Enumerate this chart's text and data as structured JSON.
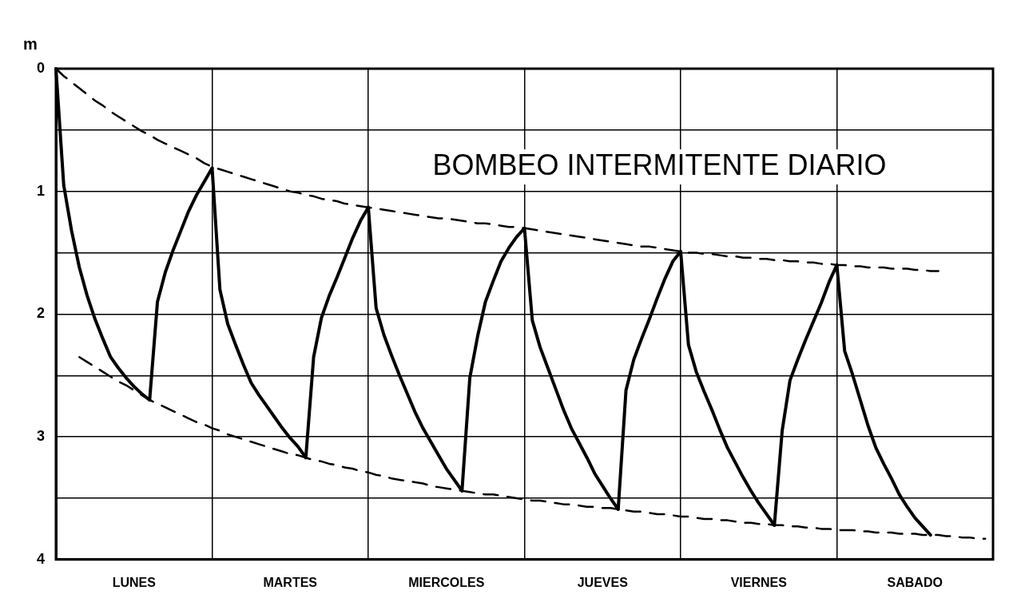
{
  "chart_data": {
    "type": "line",
    "title": "BOMBEO INTERMITENTE DIARIO",
    "ylabel": "m",
    "categories": [
      null,
      null,
      null,
      null,
      null,
      null,
      null,
      null,
      null,
      null,
      "LUNES",
      null,
      null,
      null,
      null,
      null,
      null,
      null,
      null,
      null,
      null,
      null,
      null,
      null,
      null,
      null,
      null,
      null,
      null,
      null,
      "MARTES",
      null,
      null,
      null,
      null,
      null,
      null,
      null,
      null,
      null,
      null,
      null,
      null,
      null,
      null,
      null,
      null,
      null,
      null,
      null,
      "MIERCOLES",
      null,
      null,
      null,
      null,
      null,
      null,
      null,
      null,
      null,
      null,
      null,
      null,
      null,
      null,
      null,
      null,
      null,
      null,
      null,
      "JUEVES",
      null,
      null,
      null,
      null,
      null,
      null,
      null,
      null,
      null,
      null,
      null,
      null,
      null,
      null,
      null,
      null,
      null,
      null,
      null,
      "VIERNES",
      null,
      null,
      null,
      null,
      null,
      null,
      null,
      null,
      null,
      null,
      null,
      null,
      null,
      null,
      null,
      null,
      null,
      null,
      null,
      "SABADO",
      null,
      null,
      null,
      null,
      null,
      null,
      null,
      null,
      null,
      null
    ],
    "ylim": [
      4,
      0
    ],
    "yticks": [
      0,
      {
        "value": 0.5,
        "label": null
      },
      1,
      {
        "value": 1.5,
        "label": null
      },
      2,
      {
        "value": 2.5,
        "label": null
      },
      3,
      {
        "value": 3.5,
        "label": null
      },
      4
    ],
    "grid": true,
    "legend": false,
    "marker": "none",
    "series": [
      {
        "color": "#000000",
        "line_style": "solid",
        "values": [
          0,
          0.95,
          1.32,
          1.62,
          1.85,
          2.04,
          2.2,
          2.35,
          2.44,
          2.52,
          2.59,
          2.65,
          2.7,
          null,
          null,
          null,
          null,
          null,
          null,
          null,
          0.81,
          1.8,
          2.08,
          2.25,
          2.41,
          2.56,
          2.66,
          2.75,
          2.84,
          2.93,
          3.01,
          3.08,
          3.17,
          null,
          null,
          null,
          null,
          null,
          null,
          null,
          1.13,
          1.95,
          2.17,
          2.34,
          2.5,
          2.65,
          2.8,
          2.93,
          3.04,
          3.15,
          3.26,
          3.35,
          3.44,
          null,
          null,
          null,
          null,
          null,
          null,
          null,
          1.3,
          2.05,
          2.27,
          2.44,
          2.61,
          2.78,
          2.93,
          3.05,
          3.17,
          3.3,
          3.4,
          3.5,
          3.59,
          null,
          null,
          null,
          null,
          null,
          null,
          null,
          1.49,
          2.25,
          2.47,
          2.63,
          2.78,
          2.94,
          3.09,
          3.21,
          3.33,
          3.44,
          3.54,
          3.63,
          3.72,
          null,
          null,
          null,
          null,
          null,
          null,
          null,
          1.6,
          2.3,
          2.49,
          2.7,
          2.91,
          3.09,
          3.22,
          3.34,
          3.47,
          3.57,
          3.66,
          3.73,
          3.8,
          null,
          null,
          null,
          null,
          null,
          null,
          null,
          null
        ]
      },
      {
        "color": "#000000",
        "line_style": "solid",
        "values": [
          null,
          null,
          null,
          null,
          null,
          null,
          null,
          null,
          null,
          null,
          null,
          null,
          2.7,
          1.9,
          1.66,
          1.48,
          1.32,
          1.16,
          1.03,
          0.92,
          0.81,
          null,
          null,
          null,
          null,
          null,
          null,
          null,
          null,
          null,
          null,
          null,
          3.17,
          2.35,
          2.03,
          1.85,
          1.7,
          1.54,
          1.38,
          1.24,
          1.13,
          null,
          null,
          null,
          null,
          null,
          null,
          null,
          null,
          null,
          null,
          null,
          3.44,
          2.52,
          2.18,
          1.9,
          1.73,
          1.57,
          1.46,
          1.37,
          1.3,
          null,
          null,
          null,
          null,
          null,
          null,
          null,
          null,
          null,
          null,
          null,
          3.59,
          2.62,
          2.37,
          2.2,
          2.04,
          1.87,
          1.71,
          1.57,
          1.49,
          null,
          null,
          null,
          null,
          null,
          null,
          null,
          null,
          null,
          null,
          null,
          3.72,
          2.95,
          2.54,
          2.37,
          2.21,
          2.06,
          1.91,
          1.74,
          1.6,
          null,
          null,
          null,
          null,
          null,
          null,
          null,
          null,
          null,
          null,
          null,
          null,
          null,
          null,
          null,
          null,
          null,
          null,
          null,
          null
        ]
      },
      {
        "color": "#000000",
        "line_style": "dashed",
        "values": [
          0,
          0.06,
          0.11,
          0.16,
          0.21,
          0.26,
          0.3,
          0.35,
          0.39,
          0.43,
          0.47,
          0.51,
          0.54,
          0.58,
          0.61,
          0.64,
          0.67,
          0.7,
          0.73,
          0.77,
          0.8,
          0.82,
          0.84,
          0.86,
          0.88,
          0.9,
          0.92,
          0.94,
          0.96,
          0.98,
          1.0,
          1.01,
          1.03,
          1.04,
          1.06,
          1.07,
          1.08,
          1.1,
          1.11,
          1.12,
          1.13,
          1.14,
          1.15,
          1.16,
          1.17,
          1.18,
          1.19,
          1.2,
          1.21,
          1.22,
          1.22,
          1.23,
          1.24,
          1.25,
          1.26,
          1.26,
          1.27,
          1.28,
          1.29,
          1.29,
          1.3,
          1.31,
          1.32,
          1.33,
          1.34,
          1.35,
          1.36,
          1.37,
          1.38,
          1.39,
          1.4,
          1.41,
          1.42,
          1.43,
          1.44,
          1.45,
          1.45,
          1.46,
          1.47,
          1.48,
          1.49,
          1.5,
          1.5,
          1.51,
          1.51,
          1.52,
          1.53,
          1.53,
          1.54,
          1.54,
          1.55,
          1.55,
          1.56,
          1.56,
          1.57,
          1.57,
          1.58,
          1.58,
          1.59,
          1.59,
          1.6,
          1.6,
          1.61,
          1.61,
          1.62,
          1.62,
          1.62,
          1.63,
          1.63,
          1.63,
          1.64,
          1.64,
          1.65,
          1.65,
          null,
          null,
          null,
          null,
          null,
          null,
          null
        ]
      },
      {
        "color": "#000000",
        "line_style": "dashed",
        "values": [
          null,
          null,
          null,
          2.35,
          2.39,
          2.43,
          2.47,
          2.51,
          2.55,
          2.58,
          2.62,
          2.66,
          2.7,
          2.73,
          2.76,
          2.79,
          2.82,
          2.85,
          2.88,
          2.9,
          2.93,
          2.95,
          2.98,
          3.0,
          3.02,
          3.04,
          3.06,
          3.08,
          3.1,
          3.12,
          3.14,
          3.15,
          3.17,
          3.19,
          3.2,
          3.22,
          3.23,
          3.25,
          3.26,
          3.28,
          3.29,
          3.31,
          3.32,
          3.34,
          3.35,
          3.36,
          3.37,
          3.38,
          3.4,
          3.41,
          3.42,
          3.43,
          3.44,
          3.45,
          3.46,
          3.47,
          3.47,
          3.48,
          3.49,
          3.5,
          3.51,
          3.52,
          3.52,
          3.53,
          3.54,
          3.55,
          3.55,
          3.56,
          3.57,
          3.57,
          3.58,
          3.58,
          3.59,
          3.6,
          3.61,
          3.61,
          3.62,
          3.63,
          3.63,
          3.64,
          3.65,
          3.65,
          3.66,
          3.67,
          3.67,
          3.68,
          3.68,
          3.69,
          3.7,
          3.7,
          3.71,
          3.71,
          3.72,
          3.72,
          3.73,
          3.73,
          3.74,
          3.74,
          3.75,
          3.75,
          3.76,
          3.76,
          3.76,
          3.77,
          3.77,
          3.78,
          3.78,
          3.78,
          3.79,
          3.79,
          3.79,
          3.8,
          3.8,
          3.8,
          3.81,
          3.81,
          3.82,
          3.82,
          3.83,
          3.83,
          null
        ]
      }
    ]
  }
}
